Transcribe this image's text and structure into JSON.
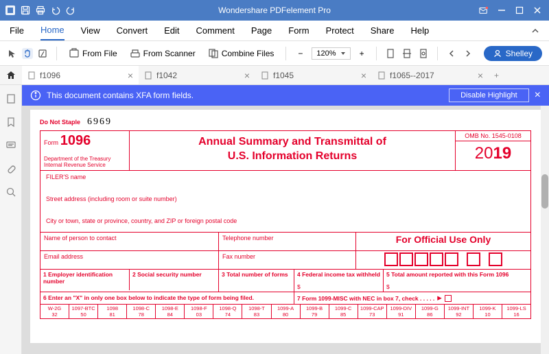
{
  "app": {
    "title": "Wondershare PDFelement Pro"
  },
  "menu": {
    "items": [
      "File",
      "Home",
      "View",
      "Convert",
      "Edit",
      "Comment",
      "Page",
      "Form",
      "Protect",
      "Share",
      "Help"
    ],
    "active": 1
  },
  "toolbar": {
    "from_file": "From File",
    "from_scanner": "From Scanner",
    "combine": "Combine Files",
    "zoom": "120%",
    "user": "Shelley"
  },
  "tabs": {
    "items": [
      {
        "label": "f1096",
        "active": true
      },
      {
        "label": "f1042",
        "active": false
      },
      {
        "label": "f1045",
        "active": false
      },
      {
        "label": "f1065--2017",
        "active": false
      }
    ]
  },
  "banner": {
    "text": "This document contains XFA form fields.",
    "btn": "Disable Highlight"
  },
  "form": {
    "do_not_staple": "Do Not Staple",
    "hand_number": "6969",
    "form_label": "Form",
    "form_no": "1096",
    "dept": "Department of the Treasury\nInternal Revenue Service",
    "title1": "Annual Summary and Transmittal of",
    "title2": "U.S. Information Returns",
    "omb": "OMB No. 1545-0108",
    "year_prefix": "20",
    "year_suffix": "19",
    "filer_name": "FILER'S name",
    "street": "Street address (including room or suite number)",
    "city": "City or town, state or province, country, and ZIP or foreign postal code",
    "contact": "Name of person to contact",
    "telephone": "Telephone number",
    "official": "For Official Use Only",
    "email": "Email address",
    "fax": "Fax number",
    "f1": "1 Employer identification number",
    "f2": "2 Social security number",
    "f3": "3 Total number of forms",
    "f4": "4 Federal income tax withheld",
    "f5": "5 Total amount reported with this Form 1096",
    "dollar": "$",
    "f6": "6 Enter an \"X\" in only one box below to indicate the type of form being filed.",
    "f7": "7 Form 1099-MISC with NEC in box 7, check  .  .  .  .  .",
    "arrow": "▶",
    "codes": [
      {
        "t": "W-2G",
        "b": "32"
      },
      {
        "t": "1097-BTC",
        "b": "50"
      },
      {
        "t": "1098",
        "b": "81"
      },
      {
        "t": "1098-C",
        "b": "78"
      },
      {
        "t": "1098-E",
        "b": "84"
      },
      {
        "t": "1098-F",
        "b": "03"
      },
      {
        "t": "1098-Q",
        "b": "74"
      },
      {
        "t": "1098-T",
        "b": "83"
      },
      {
        "t": "1099-A",
        "b": "80"
      },
      {
        "t": "1099-B",
        "b": "79"
      },
      {
        "t": "1099-C",
        "b": "85"
      },
      {
        "t": "1099-CAP",
        "b": "73"
      },
      {
        "t": "1099-DIV",
        "b": "91"
      },
      {
        "t": "1099-G",
        "b": "86"
      },
      {
        "t": "1099-INT",
        "b": "92"
      },
      {
        "t": "1099-K",
        "b": "10"
      },
      {
        "t": "1099-LS",
        "b": "16"
      }
    ]
  },
  "colors": {
    "brand": "#4a7cc4",
    "accent": "#2968c7",
    "banner": "#4a63f5",
    "form_red": "#e4002b"
  }
}
